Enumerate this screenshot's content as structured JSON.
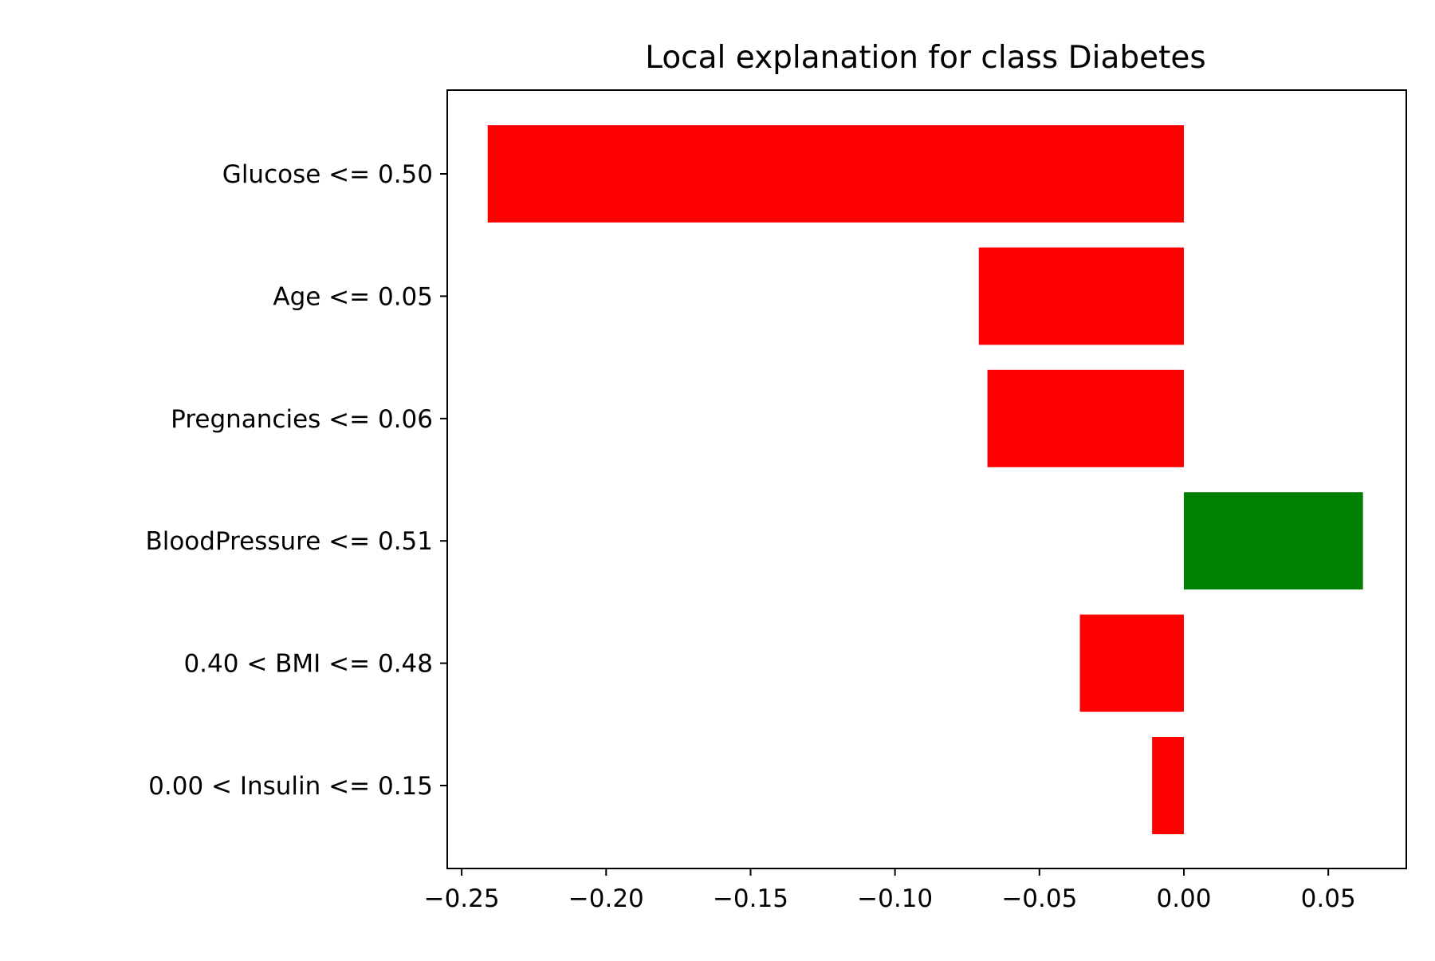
{
  "chart_data": {
    "type": "bar",
    "orientation": "horizontal",
    "title": "Local explanation for class Diabetes",
    "xlabel": "",
    "ylabel": "",
    "categories": [
      "Glucose <= 0.50",
      "Age <= 0.05",
      "Pregnancies <= 0.06",
      "BloodPressure <= 0.51",
      "0.40 < BMI <= 0.48",
      "0.00 < Insulin <= 0.15"
    ],
    "values": [
      -0.241,
      -0.071,
      -0.068,
      0.062,
      -0.036,
      -0.011
    ],
    "xlim": [
      -0.255,
      0.077
    ],
    "xticks": [
      -0.25,
      -0.2,
      -0.15,
      -0.1,
      -0.05,
      0.0,
      0.05
    ],
    "xtick_labels": [
      "−0.25",
      "−0.20",
      "−0.15",
      "−0.10",
      "−0.05",
      "0.00",
      "0.05"
    ],
    "colors": {
      "positive": "#008000",
      "negative": "#ff0000"
    },
    "grid": false,
    "legend": "none"
  }
}
